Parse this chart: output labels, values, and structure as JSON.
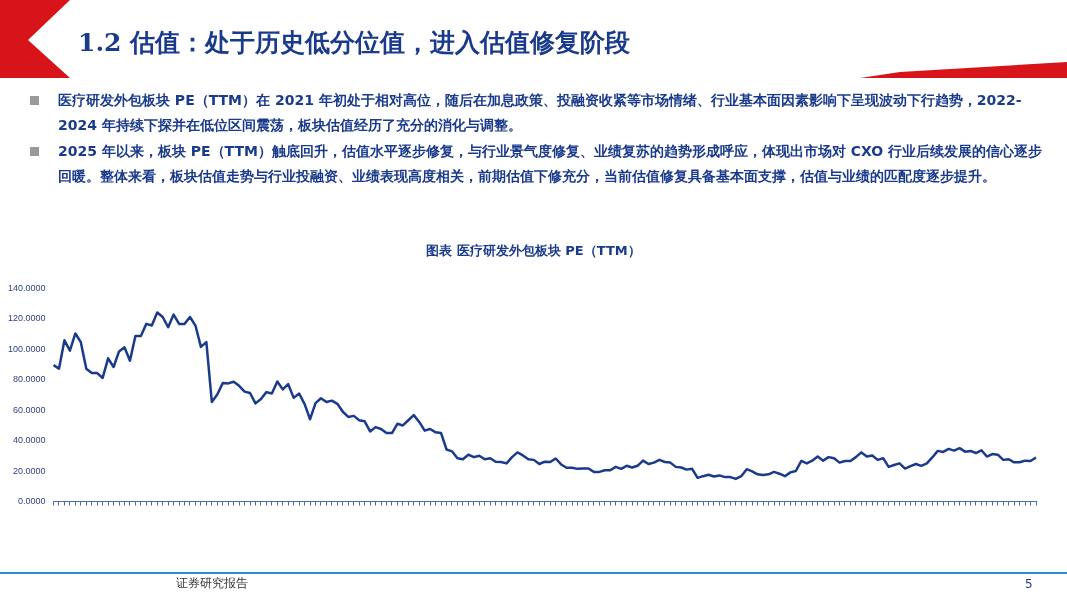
{
  "chart_data": {
    "type": "line",
    "title": "1.2 估值：处于历史低分位值，进入估值修复阶段",
    "subtitle": "图表  医疗研发外包板块 PE（TTM）",
    "annotations": [
      "医疗研发外包板块 PE（TTM）在 2021 年初处于相对高位，随后在加息政策、投融资收紧等市场情绪、行业基本面因素影响下呈现波动下行趋势，2022-2024 年持续下探并在低位区间震荡，板块估值经历了充分的消化与调整。",
      "2025 年以来，板块 PE（TTM）触底回升，估值水平逐步修复，与行业景气度修复、业绩复苏的趋势形成呼应，体现出市场对 CXO 行业后续发展的信心逐步回暖。整体来看，板块估值走势与行业投融资、业绩表现高度相关，前期估值下修充分，当前估值修复具备基本面支撑，估值与业绩的匹配度逐步提升。",
      "证券研究报告",
      "5"
    ],
    "color": "#1a3a8c",
    "ylim": [
      0,
      140
    ],
    "yticks": [
      {
        "value": 0,
        "label": "0.0000"
      },
      {
        "value": 20,
        "label": "20.0000"
      },
      {
        "value": 40,
        "label": "40.0000"
      },
      {
        "value": 60,
        "label": "60.0000"
      },
      {
        "value": 80,
        "label": "80.0000"
      },
      {
        "value": 100,
        "label": "100.0000"
      },
      {
        "value": 120,
        "label": "120.0000"
      },
      {
        "value": 140,
        "label": "140.0000"
      }
    ],
    "grid": false,
    "legend": false,
    "marker": "none",
    "line_style": "solid",
    "values": [
      89.6,
      87.3,
      105.9,
      99.1,
      110.4,
      104.7,
      87.3,
      84.4,
      84.4,
      81.2,
      94.1,
      88.4,
      98.6,
      101.3,
      92.5,
      108.8,
      108.8,
      116.7,
      115.6,
      124.2,
      121.2,
      114.5,
      122.8,
      116.7,
      116.7,
      121.2,
      115.6,
      101.6,
      104.7,
      65.4,
      70.3,
      77.8,
      77.6,
      78.7,
      76.0,
      72.2,
      71.3,
      64.5,
      67.4,
      71.9,
      71.0,
      78.9,
      73.7,
      77.1,
      68.1,
      71.0,
      64.0,
      54.1,
      64.7,
      67.9,
      65.4,
      66.3,
      64.2,
      59.0,
      55.6,
      56.3,
      53.4,
      52.7,
      46.1,
      48.9,
      47.7,
      45.0,
      45.0,
      51.1,
      50.0,
      53.4,
      56.8,
      52.3,
      46.6,
      47.7,
      45.5,
      45.0,
      34.2,
      33.0,
      28.5,
      27.8,
      30.8,
      29.2,
      30.1,
      27.8,
      28.5,
      26.2,
      26.0,
      25.1,
      29.2,
      32.3,
      30.3,
      27.8,
      27.4,
      24.7,
      26.2,
      26.0,
      28.3,
      24.4,
      22.2,
      22.2,
      21.5,
      21.7,
      21.7,
      19.5,
      19.5,
      20.6,
      20.6,
      22.8,
      21.5,
      23.5,
      22.4,
      23.5,
      26.9,
      24.7,
      25.6,
      27.4,
      26.0,
      25.6,
      22.8,
      22.4,
      21.0,
      21.5,
      15.6,
      16.7,
      17.6,
      16.5,
      17.2,
      16.1,
      16.1,
      14.9,
      16.7,
      21.3,
      19.9,
      17.9,
      17.4,
      17.9,
      19.5,
      18.3,
      16.7,
      19.2,
      20.1,
      26.7,
      25.1,
      26.9,
      29.6,
      26.9,
      29.2,
      28.5,
      25.6,
      26.7,
      26.7,
      29.2,
      32.3,
      29.6,
      30.3,
      27.4,
      28.5,
      22.8,
      24.0,
      25.1,
      21.7,
      23.3,
      24.7,
      23.5,
      25.1,
      29.0,
      33.3,
      32.6,
      34.6,
      33.5,
      35.1,
      32.8,
      33.3,
      31.9,
      33.7,
      29.6,
      31.2,
      30.8,
      27.4,
      27.8,
      25.8,
      25.8,
      26.9,
      26.7,
      29.0
    ]
  }
}
